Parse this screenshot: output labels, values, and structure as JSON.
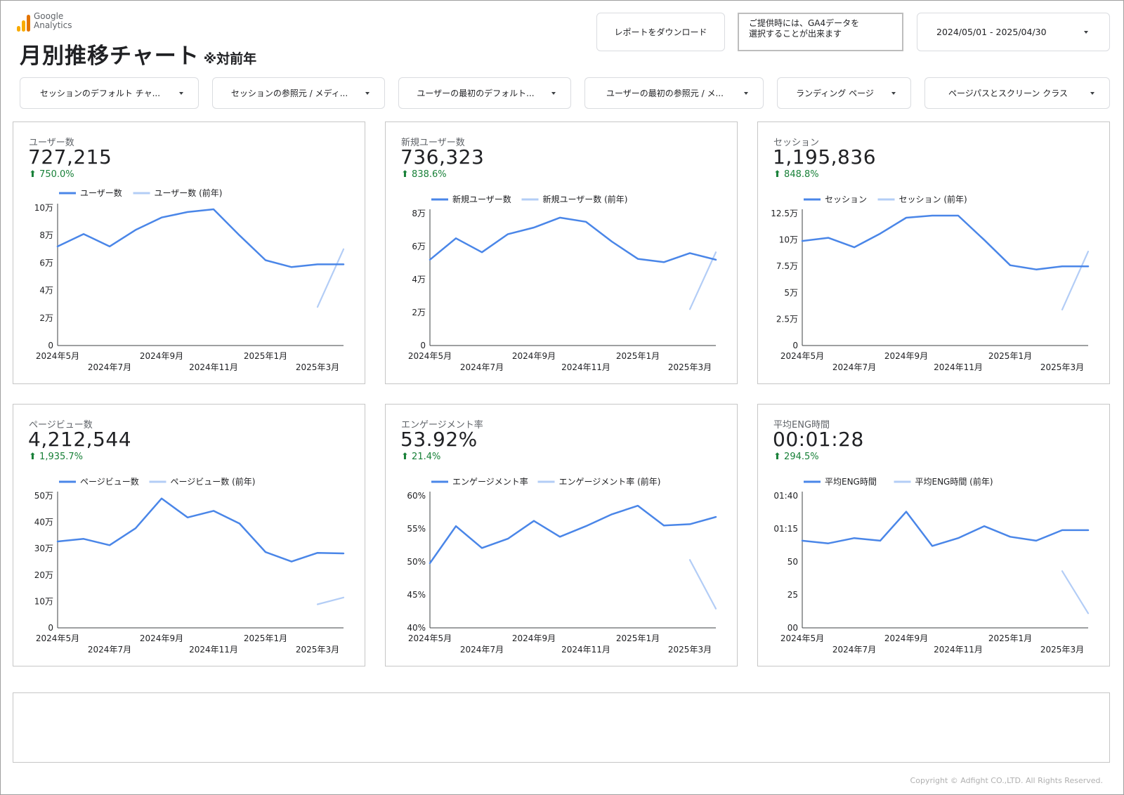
{
  "header": {
    "logo_line1": "Google",
    "logo_line2": "Analytics",
    "title": "月別推移チャート",
    "title_sub": "※対前年",
    "download_label": "レポートをダウンロード",
    "note_line1": "ご提供時には、GA4データを",
    "note_line2": "選択することが出来ます",
    "date_range": "2024/05/01 - 2025/04/30"
  },
  "filters": [
    {
      "label": "セッションのデフォルト チャ..."
    },
    {
      "label": "セッションの参照元 / メディ..."
    },
    {
      "label": "ユーザーの最初のデフォルト..."
    },
    {
      "label": "ユーザーの最初の参照元 / メ..."
    },
    {
      "label": "ランディング ページ"
    },
    {
      "label": "ページパスとスクリーン クラス"
    }
  ],
  "colors": {
    "current": "#4a86e8",
    "previous": "#b3cdf6",
    "axis": "#3c4043",
    "positive": "#188038",
    "logo_bar1": "#f9ab00",
    "logo_bar2": "#f9ab00",
    "logo_bar3": "#e37400"
  },
  "x_tick_labels": [
    "2024年5月",
    "2024年7月",
    "2024年9月",
    "2024年11月",
    "2025年1月",
    "2025年3月"
  ],
  "chart_data": [
    {
      "type": "line",
      "title": "ユーザー数",
      "score": "727,215",
      "change": "750.0%",
      "x": [
        "2024-05",
        "2024-06",
        "2024-07",
        "2024-08",
        "2024-09",
        "2024-10",
        "2024-11",
        "2024-12",
        "2025-01",
        "2025-02",
        "2025-03",
        "2025-04"
      ],
      "y_ticks": [
        "0",
        "2万",
        "4万",
        "6万",
        "8万",
        "10万"
      ],
      "ylim": [
        0,
        100000
      ],
      "series": [
        {
          "name": "ユーザー数",
          "values": [
            72000,
            81000,
            72000,
            84000,
            93000,
            97000,
            99000,
            80000,
            62000,
            57000,
            59000,
            59000
          ]
        },
        {
          "name": "ユーザー数 (前年)",
          "values": [
            null,
            null,
            null,
            null,
            null,
            null,
            null,
            null,
            null,
            null,
            28000,
            70000
          ]
        }
      ]
    },
    {
      "type": "line",
      "title": "新規ユーザー数",
      "score": "736,323",
      "change": "838.6%",
      "x": [
        "2024-05",
        "2024-06",
        "2024-07",
        "2024-08",
        "2024-09",
        "2024-10",
        "2024-11",
        "2024-12",
        "2025-01",
        "2025-02",
        "2025-03",
        "2025-04"
      ],
      "y_ticks": [
        "0",
        "2万",
        "4万",
        "6万",
        "8万"
      ],
      "ylim": [
        0,
        80000
      ],
      "series": [
        {
          "name": "新規ユーザー数",
          "values": [
            52000,
            65000,
            56500,
            67500,
            71500,
            77500,
            75000,
            63000,
            52500,
            50500,
            56000,
            52000
          ]
        },
        {
          "name": "新規ユーザー数 (前年)",
          "values": [
            null,
            null,
            null,
            null,
            null,
            null,
            null,
            null,
            null,
            null,
            22000,
            56500
          ]
        }
      ]
    },
    {
      "type": "line",
      "title": "セッション",
      "score": "1,195,836",
      "change": "848.8%",
      "x": [
        "2024-05",
        "2024-06",
        "2024-07",
        "2024-08",
        "2024-09",
        "2024-10",
        "2024-11",
        "2024-12",
        "2025-01",
        "2025-02",
        "2025-03",
        "2025-04"
      ],
      "y_ticks": [
        "0",
        "2.5万",
        "5万",
        "7.5万",
        "10万",
        "12.5万"
      ],
      "ylim": [
        0,
        125000
      ],
      "series": [
        {
          "name": "セッション",
          "values": [
            99000,
            102000,
            93000,
            106000,
            121000,
            123000,
            123000,
            100000,
            76000,
            72000,
            75000,
            75000
          ]
        },
        {
          "name": "セッション (前年)",
          "values": [
            null,
            null,
            null,
            null,
            null,
            null,
            null,
            null,
            null,
            null,
            34000,
            89000
          ]
        }
      ]
    },
    {
      "type": "line",
      "title": "ページビュー数",
      "score": "4,212,544",
      "change": "1,935.7%",
      "x": [
        "2024-05",
        "2024-06",
        "2024-07",
        "2024-08",
        "2024-09",
        "2024-10",
        "2024-11",
        "2024-12",
        "2025-01",
        "2025-02",
        "2025-03",
        "2025-04"
      ],
      "y_ticks": [
        "0",
        "10万",
        "20万",
        "30万",
        "40万",
        "50万"
      ],
      "ylim": [
        0,
        500000
      ],
      "series": [
        {
          "name": "ページビュー数",
          "values": [
            327000,
            337000,
            313000,
            377000,
            490000,
            418000,
            443000,
            395000,
            287000,
            251000,
            284000,
            282000
          ]
        },
        {
          "name": "ページビュー数 (前年)",
          "values": [
            null,
            null,
            null,
            null,
            null,
            null,
            null,
            null,
            null,
            null,
            89000,
            115000
          ]
        }
      ]
    },
    {
      "type": "line",
      "title": "エンゲージメント率",
      "score": "53.92%",
      "change": "21.4%",
      "x": [
        "2024-05",
        "2024-06",
        "2024-07",
        "2024-08",
        "2024-09",
        "2024-10",
        "2024-11",
        "2024-12",
        "2025-01",
        "2025-02",
        "2025-03",
        "2025-04"
      ],
      "y_ticks": [
        "40%",
        "45%",
        "50%",
        "55%",
        "60%"
      ],
      "ylim": [
        40,
        60
      ],
      "series": [
        {
          "name": "エンゲージメント率",
          "values": [
            49.8,
            55.4,
            52.1,
            53.5,
            56.2,
            53.8,
            55.4,
            57.2,
            58.5,
            55.5,
            55.7,
            56.8
          ]
        },
        {
          "name": "エンゲージメント率 (前年)",
          "values": [
            null,
            null,
            null,
            null,
            null,
            null,
            null,
            null,
            null,
            null,
            50.3,
            42.9
          ]
        }
      ]
    },
    {
      "type": "line",
      "title": "平均ENG時間",
      "score": "00:01:28",
      "change": "294.5%",
      "x": [
        "2024-05",
        "2024-06",
        "2024-07",
        "2024-08",
        "2024-09",
        "2024-10",
        "2024-11",
        "2024-12",
        "2025-01",
        "2025-02",
        "2025-03",
        "2025-04"
      ],
      "y_ticks": [
        "00",
        "25",
        "50",
        "01:15",
        "01:40"
      ],
      "ylim": [
        0,
        100
      ],
      "y_unit": "seconds",
      "series": [
        {
          "name": "平均ENG時間",
          "values": [
            66,
            64,
            68,
            66,
            88,
            62,
            68,
            77,
            69,
            66,
            74,
            74
          ]
        },
        {
          "name": "平均ENG時間 (前年)",
          "values": [
            null,
            null,
            null,
            null,
            null,
            null,
            null,
            null,
            null,
            null,
            43,
            11
          ]
        }
      ]
    }
  ],
  "footer": {
    "copyright": "Copyright © Adfight CO.,LTD. All Rights Reserved."
  }
}
